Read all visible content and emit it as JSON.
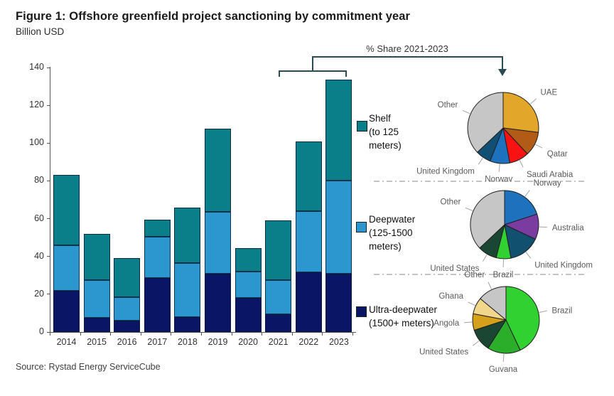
{
  "title": "Figure 1: Offshore greenfield project sanctioning by commitment year",
  "subtitle": "Billion USD",
  "share_header": "% Share 2021-2023",
  "source": "Source: Rystad Energy ServiceCube",
  "colors": {
    "shelf": "#0B7F89",
    "deepwater": "#2B97CE",
    "ultra_deepwater": "#0A1566",
    "bracket": "#2C4A56",
    "separator": "#8a8a8a",
    "pie_other_gray": "#C6C6C6"
  },
  "legend": {
    "shelf": [
      "Shelf",
      "(to 125",
      "meters)"
    ],
    "deepwater": [
      "Deepwater",
      "(125-1500",
      "meters)"
    ],
    "ultra": [
      "Ultra-deepwater",
      "(1500+ meters)"
    ]
  },
  "chart_data": [
    {
      "type": "bar",
      "stacked": true,
      "title": "Offshore greenfield project sanctioning by commitment year",
      "ylabel": "Billion USD",
      "ylim": [
        0,
        140
      ],
      "yticks": [
        0,
        20,
        40,
        60,
        80,
        100,
        120,
        140
      ],
      "grid": false,
      "categories": [
        "2014",
        "2015",
        "2016",
        "2017",
        "2018",
        "2019",
        "2020",
        "2021",
        "2022",
        "2023"
      ],
      "series": [
        {
          "key": "ultra",
          "name": "Ultra-deepwater (1500+ meters)",
          "color": "#0A1566",
          "values": [
            22,
            7.5,
            6,
            28.5,
            8,
            31,
            18,
            9.5,
            31.5,
            31
          ]
        },
        {
          "key": "deepwater",
          "name": "Deepwater (125-1500 meters)",
          "color": "#2B97CE",
          "values": [
            24,
            20,
            12.5,
            22,
            28.5,
            32.5,
            14,
            18,
            32.5,
            49
          ]
        },
        {
          "key": "shelf",
          "name": "Shelf (to 125 meters)",
          "color": "#0B7F89",
          "values": [
            37,
            24.5,
            20.5,
            9,
            29.5,
            44,
            12.5,
            31.5,
            37,
            53.5
          ]
        }
      ]
    },
    {
      "type": "pie",
      "name": "shelf-share-2021-2023",
      "slices": [
        {
          "label": "UAE",
          "value": 27,
          "color": "#E2A62B"
        },
        {
          "label": "Qatar",
          "value": 11,
          "color": "#B25B17"
        },
        {
          "label": "Saudi Arabia",
          "value": 9,
          "color": "#F81212"
        },
        {
          "label": "Norwav",
          "value": 9,
          "color": "#1E71BD"
        },
        {
          "label": "United Kingdom",
          "value": 7,
          "color": "#114F75"
        },
        {
          "label": "Other",
          "value": 37,
          "color": "#C6C6C6"
        }
      ]
    },
    {
      "type": "pie",
      "name": "deepwater-share-2021-2023",
      "slices": [
        {
          "label": "Norway",
          "value": 20,
          "color": "#1E71BD"
        },
        {
          "label": "Australia",
          "value": 12,
          "color": "#7B3CA2"
        },
        {
          "label": "United Kingdom",
          "value": 15,
          "color": "#11506E"
        },
        {
          "label": "Brazil",
          "value": 7,
          "color": "#32D132"
        },
        {
          "label": "United States",
          "value": 9,
          "color": "#1C4634"
        },
        {
          "label": "Other",
          "value": 37,
          "color": "#C6C6C6"
        }
      ]
    },
    {
      "type": "pie",
      "name": "ultra-deepwater-share-2021-2023",
      "slices": [
        {
          "label": "Brazil",
          "value": 43,
          "color": "#32D132"
        },
        {
          "label": "Guvana",
          "value": 16,
          "color": "#2BAF2B"
        },
        {
          "label": "United States",
          "value": 11,
          "color": "#1C4634"
        },
        {
          "label": "Angola",
          "value": 8,
          "color": "#D5A01B"
        },
        {
          "label": "Ghana",
          "value": 8,
          "color": "#F0D78C"
        },
        {
          "label": "Other",
          "value": 14,
          "color": "#C6C6C6"
        }
      ]
    }
  ]
}
